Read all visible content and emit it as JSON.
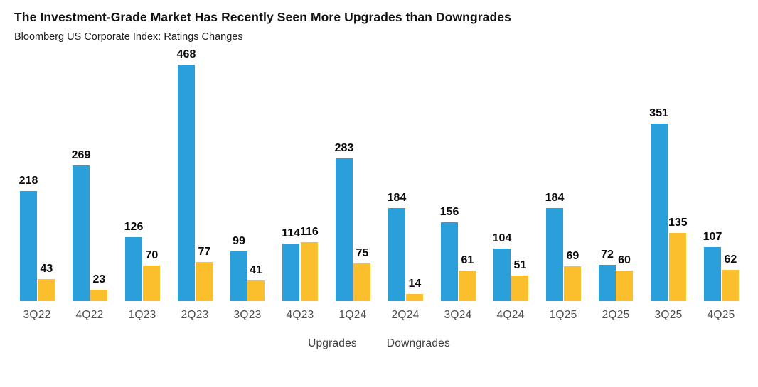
{
  "header": {
    "title": "The Investment-Grade Market Has Recently Seen More Upgrades than Downgrades",
    "subtitle": "Bloomberg US Corporate Index: Ratings Changes"
  },
  "legend": {
    "items": [
      "Upgrades",
      "Downgrades"
    ]
  },
  "chart_data": {
    "type": "bar",
    "title": "The Investment-Grade Market Has Recently Seen More Upgrades than Downgrades",
    "subtitle": "Bloomberg US Corporate Index: Ratings Changes",
    "categories": [
      "3Q22",
      "4Q22",
      "1Q23",
      "2Q23",
      "3Q23",
      "4Q23",
      "1Q24",
      "2Q24",
      "3Q24",
      "4Q24",
      "1Q25",
      "2Q25",
      "3Q25",
      "4Q25"
    ],
    "series": [
      {
        "name": "Upgrades",
        "color": "#2B9FDA",
        "values": [
          218,
          269,
          126,
          468,
          99,
          114,
          283,
          184,
          156,
          104,
          184,
          72,
          351,
          107
        ]
      },
      {
        "name": "Downgrades",
        "color": "#FBBF2D",
        "values": [
          43,
          23,
          70,
          77,
          41,
          116,
          75,
          14,
          61,
          51,
          69,
          60,
          135,
          62
        ]
      }
    ],
    "value_labels": true,
    "grid": false,
    "axis_lines": false,
    "ylim": [
      0,
      500
    ],
    "legend_position": "bottom",
    "xlabel": "",
    "ylabel": ""
  }
}
